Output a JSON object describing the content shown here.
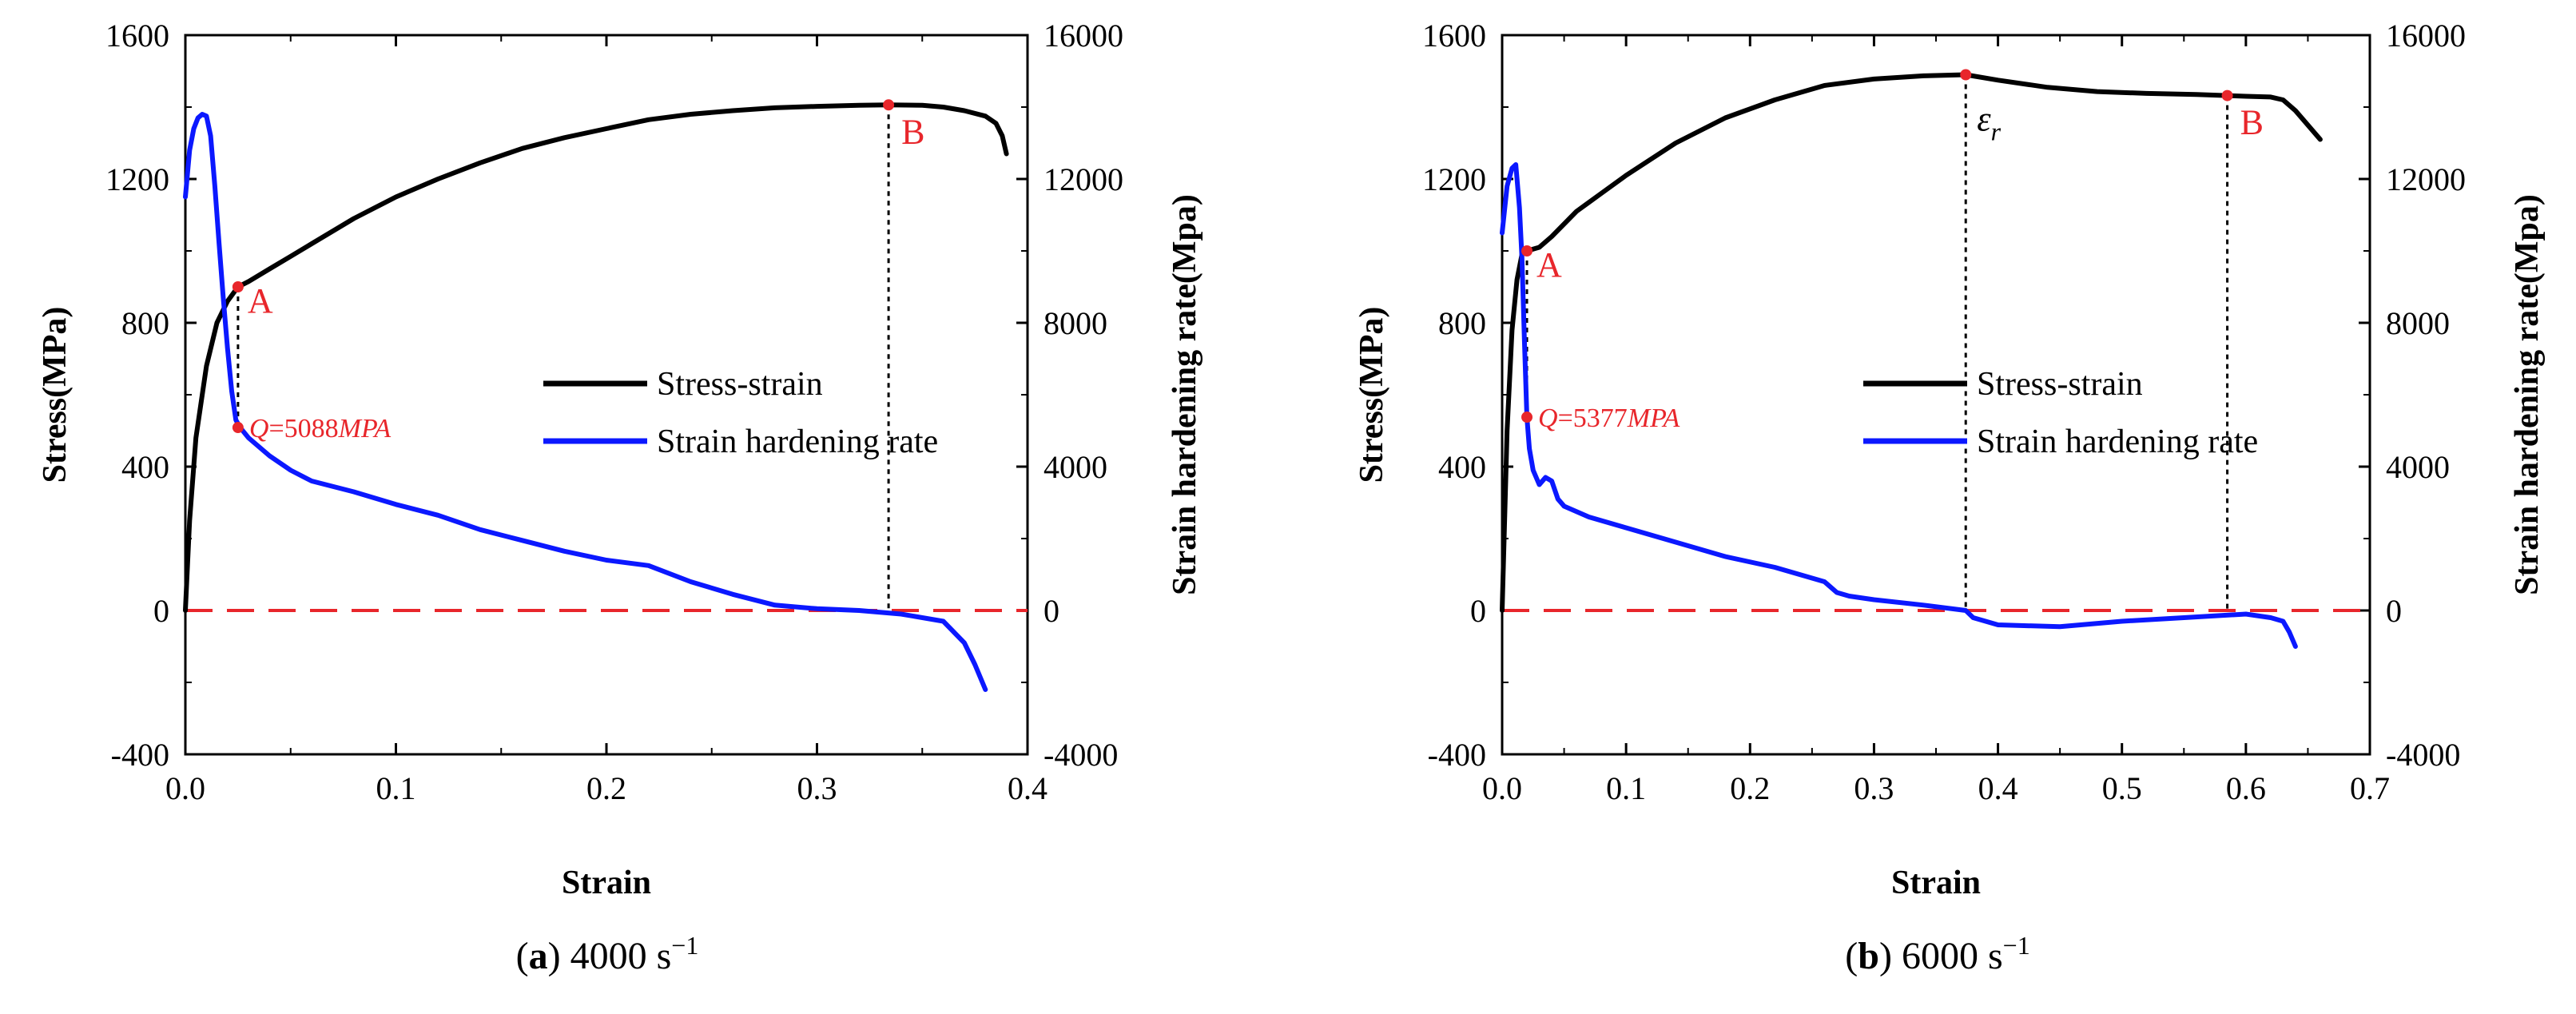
{
  "colors": {
    "stress": "#000000",
    "hardening": "#0b18ff",
    "zero_line": "#e8262b",
    "marker": "#e8262b"
  },
  "chart_data": [
    {
      "type": "line",
      "caption": {
        "tag": "a",
        "text": "4000 s",
        "sup": "−1"
      },
      "xlabel": "Strain",
      "ylabel": "Stress(MPa)",
      "y2label": "Strain hardening rate(Mpa)",
      "xlim": [
        0.0,
        0.4
      ],
      "ylim": [
        -400,
        1600
      ],
      "y2lim": [
        -4000,
        16000
      ],
      "xticks": [
        "0.0",
        "0.1",
        "0.2",
        "0.3",
        "0.4"
      ],
      "yticks": [
        "-400",
        "0",
        "400",
        "800",
        "1200",
        "1600"
      ],
      "y2ticks": [
        "-4000",
        "0",
        "4000",
        "8000",
        "12000",
        "16000"
      ],
      "legend": {
        "position": "center-right",
        "entries": [
          "Stress-strain",
          "Strain hardening rate"
        ]
      },
      "series": [
        {
          "name": "Stress-strain",
          "axis": "left",
          "x": [
            0.0,
            0.002,
            0.005,
            0.01,
            0.015,
            0.02,
            0.025,
            0.03,
            0.04,
            0.05,
            0.06,
            0.08,
            0.1,
            0.12,
            0.14,
            0.16,
            0.18,
            0.2,
            0.22,
            0.24,
            0.26,
            0.28,
            0.3,
            0.32,
            0.334,
            0.35,
            0.36,
            0.37,
            0.38,
            0.385,
            0.388,
            0.39
          ],
          "y": [
            0,
            250,
            480,
            680,
            800,
            860,
            900,
            915,
            950,
            985,
            1020,
            1090,
            1150,
            1200,
            1245,
            1285,
            1315,
            1340,
            1365,
            1380,
            1390,
            1398,
            1402,
            1405,
            1406,
            1405,
            1400,
            1390,
            1375,
            1355,
            1320,
            1270
          ]
        },
        {
          "name": "Strain hardening rate",
          "axis": "right",
          "x": [
            0.0,
            0.002,
            0.004,
            0.006,
            0.008,
            0.01,
            0.012,
            0.014,
            0.016,
            0.018,
            0.02,
            0.022,
            0.024,
            0.026,
            0.03,
            0.04,
            0.05,
            0.06,
            0.08,
            0.1,
            0.12,
            0.14,
            0.16,
            0.18,
            0.2,
            0.22,
            0.24,
            0.26,
            0.28,
            0.3,
            0.32,
            0.34,
            0.36,
            0.37,
            0.375,
            0.38
          ],
          "y": [
            11500,
            12800,
            13400,
            13700,
            13800,
            13750,
            13200,
            11800,
            10200,
            8700,
            7300,
            6100,
            5300,
            5088,
            4800,
            4300,
            3900,
            3600,
            3300,
            2950,
            2650,
            2250,
            1950,
            1650,
            1400,
            1250,
            800,
            450,
            150,
            50,
            0,
            -100,
            -300,
            -900,
            -1500,
            -2200
          ]
        }
      ],
      "reference_line": {
        "y": 0
      },
      "points": [
        {
          "label": "A",
          "x": 0.025,
          "y": 900,
          "axis": "left"
        },
        {
          "label": "B",
          "x": 0.334,
          "y": 1406,
          "axis": "left"
        },
        {
          "label": "",
          "x": 0.025,
          "y": 5088,
          "axis": "right"
        }
      ],
      "annotations": {
        "q_symbol": "Q",
        "q_value": "=5088",
        "q_unit": "MPA"
      }
    },
    {
      "type": "line",
      "caption": {
        "tag": "b",
        "text": "6000 s",
        "sup": "−1"
      },
      "xlabel": "Strain",
      "ylabel": "Stress(MPa)",
      "y2label": "Strain hardening rate(Mpa)",
      "xlim": [
        0.0,
        0.7
      ],
      "ylim": [
        -400,
        1600
      ],
      "y2lim": [
        -4000,
        16000
      ],
      "xticks": [
        "0.0",
        "0.1",
        "0.2",
        "0.3",
        "0.4",
        "0.5",
        "0.6",
        "0.7"
      ],
      "yticks": [
        "-400",
        "0",
        "400",
        "800",
        "1200",
        "1600"
      ],
      "y2ticks": [
        "-4000",
        "0",
        "4000",
        "8000",
        "12000",
        "16000"
      ],
      "legend": {
        "position": "center-right",
        "entries": [
          "Stress-strain",
          "Strain hardening rate"
        ]
      },
      "series": [
        {
          "name": "Stress-strain",
          "axis": "left",
          "x": [
            0.0,
            0.004,
            0.008,
            0.012,
            0.016,
            0.02,
            0.03,
            0.04,
            0.06,
            0.08,
            0.1,
            0.14,
            0.18,
            0.22,
            0.26,
            0.3,
            0.34,
            0.374,
            0.4,
            0.44,
            0.48,
            0.52,
            0.56,
            0.585,
            0.6,
            0.62,
            0.63,
            0.64,
            0.65,
            0.66
          ],
          "y": [
            0,
            500,
            780,
            920,
            990,
            1000,
            1010,
            1040,
            1110,
            1160,
            1210,
            1300,
            1370,
            1420,
            1460,
            1478,
            1487,
            1490,
            1475,
            1455,
            1443,
            1438,
            1435,
            1432,
            1430,
            1428,
            1420,
            1390,
            1350,
            1310
          ]
        },
        {
          "name": "Strain hardening rate",
          "axis": "right",
          "x": [
            0.0,
            0.004,
            0.008,
            0.011,
            0.014,
            0.016,
            0.018,
            0.02,
            0.022,
            0.025,
            0.03,
            0.035,
            0.04,
            0.045,
            0.05,
            0.07,
            0.1,
            0.14,
            0.18,
            0.22,
            0.26,
            0.27,
            0.28,
            0.3,
            0.34,
            0.374,
            0.38,
            0.4,
            0.45,
            0.5,
            0.55,
            0.6,
            0.62,
            0.63,
            0.635,
            0.64
          ],
          "y": [
            10500,
            11800,
            12300,
            12400,
            11200,
            9800,
            7500,
            5377,
            4500,
            3900,
            3500,
            3700,
            3600,
            3100,
            2900,
            2600,
            2300,
            1900,
            1500,
            1200,
            800,
            500,
            400,
            300,
            150,
            0,
            -200,
            -400,
            -450,
            -300,
            -200,
            -100,
            -200,
            -300,
            -600,
            -1000
          ]
        }
      ],
      "reference_line": {
        "y": 0
      },
      "points": [
        {
          "label": "A",
          "x": 0.02,
          "y": 1000,
          "axis": "left"
        },
        {
          "label": "B",
          "x": 0.585,
          "y": 1432,
          "axis": "left"
        },
        {
          "label": "ε_r",
          "x": 0.374,
          "y": 1490,
          "axis": "left"
        },
        {
          "label": "",
          "x": 0.02,
          "y": 5377,
          "axis": "right"
        }
      ],
      "annotations": {
        "q_symbol": "Q",
        "q_value": "=5377",
        "q_unit": "MPA",
        "epsilon_symbol": "ε",
        "epsilon_sub": "r"
      }
    }
  ]
}
